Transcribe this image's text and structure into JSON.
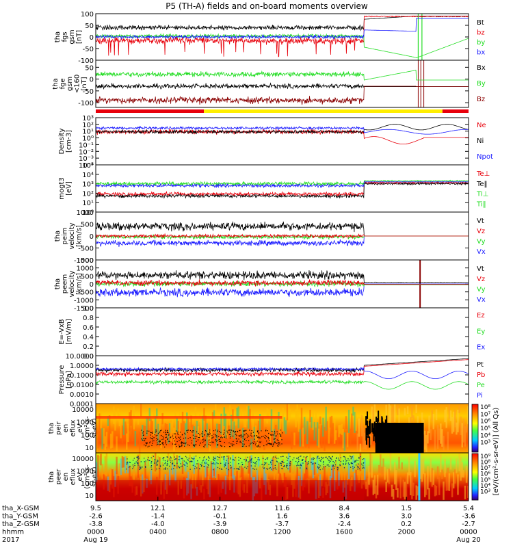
{
  "title": "P5 (TH-A) fields and on-board moments overview",
  "colors": {
    "black": "#000000",
    "red": "#e8000b",
    "darkred": "#8b0000",
    "green": "#22dd22",
    "blue": "#1a1aff",
    "yellow": "#ffee00"
  },
  "chart_data": {
    "type": "line",
    "x_axis": {
      "rows": [
        {
          "label": "tha_X-GSM",
          "values": [
            "9.5",
            "12.1",
            "12.7",
            "11.6",
            "8.4",
            "1.5",
            "5.4"
          ]
        },
        {
          "label": "tha_Y-GSM",
          "values": [
            "-2.6",
            "-1.4",
            "-0.1",
            "1.6",
            "3.6",
            "3.0",
            "-3.6"
          ]
        },
        {
          "label": "tha_Z-GSM",
          "values": [
            "-3.8",
            "-4.0",
            "-3.9",
            "-3.7",
            "-2.4",
            "0.2",
            "-2.7"
          ]
        },
        {
          "label": "hhmm",
          "values": [
            "0000",
            "0400",
            "0800",
            "1200",
            "1600",
            "2000",
            "0000"
          ]
        },
        {
          "label": "2017",
          "values": [
            "Aug 19",
            "",
            "",
            "",
            "",
            "",
            "Aug 20"
          ]
        }
      ]
    },
    "panels": [
      {
        "id": "fgs",
        "ylabel_lines": [
          "tha",
          "fgs",
          "gsm",
          "[nT]"
        ],
        "ylim": [
          -100,
          100
        ],
        "ticks": [
          "100",
          "50",
          "0",
          "-50",
          "-100"
        ],
        "series": [
          {
            "name": "Bt",
            "color": "black"
          },
          {
            "name": "bz",
            "color": "red"
          },
          {
            "name": "by",
            "color": "green"
          },
          {
            "name": "bx",
            "color": "blue"
          }
        ]
      },
      {
        "id": "fge",
        "ylabel_lines": [
          "tha",
          "fge",
          "gsm",
          "<160",
          "[nT]"
        ],
        "ylim": [
          -120,
          80
        ],
        "ticks": [
          "50",
          "0",
          "-50",
          "-100"
        ],
        "series": [
          {
            "name": "Bx",
            "color": "black"
          },
          {
            "name": "By",
            "color": "green"
          },
          {
            "name": "Bz",
            "color": "darkred"
          }
        ]
      },
      {
        "id": "density",
        "ylabel_lines": [
          "Density",
          "[cm-3]"
        ],
        "ylim": [
          0.0001,
          1000
        ],
        "log": true,
        "ticks": [
          "10³",
          "10²",
          "10¹",
          "10⁰",
          "10⁻¹",
          "10⁻²",
          "10⁻³",
          "10⁻⁴"
        ],
        "series": [
          {
            "name": "Ne",
            "color": "red"
          },
          {
            "name": "Ni",
            "color": "black"
          },
          {
            "name": "Npot",
            "color": "blue"
          }
        ]
      },
      {
        "id": "temperature",
        "ylabel_lines": [
          "mogt3",
          "[eV]"
        ],
        "ylim": [
          1,
          100000
        ],
        "log": true,
        "ticks": [
          "10⁵",
          "10⁴",
          "10³",
          "10²",
          "10¹",
          "10⁰"
        ],
        "series": [
          {
            "name": "Te⊥",
            "color": "red"
          },
          {
            "name": "Te‖",
            "color": "black"
          },
          {
            "name": "Ti⊥",
            "color": "green"
          },
          {
            "name": "Ti‖",
            "color": "green"
          }
        ]
      },
      {
        "id": "peim",
        "ylabel_lines": [
          "tha",
          "peim",
          "velocity",
          "[km/s]"
        ],
        "ylim": [
          -1000,
          1000
        ],
        "ticks": [
          "1000",
          "500",
          "0",
          "-500",
          "-1000"
        ],
        "series": [
          {
            "name": "Vt",
            "color": "black"
          },
          {
            "name": "Vz",
            "color": "red"
          },
          {
            "name": "Vy",
            "color": "green"
          },
          {
            "name": "Vx",
            "color": "blue"
          }
        ]
      },
      {
        "id": "peem",
        "ylabel_lines": [
          "tha",
          "peem",
          "velocity",
          "[km/s]"
        ],
        "ylim": [
          -1500,
          1500
        ],
        "ticks": [
          "1500",
          "1000",
          "500",
          "0",
          "-500",
          "-1000",
          "-1500"
        ],
        "series": [
          {
            "name": "Vt",
            "color": "black"
          },
          {
            "name": "Vz",
            "color": "red"
          },
          {
            "name": "Vy",
            "color": "green"
          },
          {
            "name": "Vx",
            "color": "blue"
          }
        ]
      },
      {
        "id": "efield",
        "ylabel_lines": [
          "E=-VxB",
          "[mV/m]"
        ],
        "ylim": [
          0,
          1
        ],
        "ticks": [
          "1.0",
          "0.8",
          "0.6",
          "0.4",
          "0.2",
          "0.0"
        ],
        "series": [
          {
            "name": "Ez",
            "color": "red"
          },
          {
            "name": "Ey",
            "color": "green"
          },
          {
            "name": "Ex",
            "color": "blue"
          }
        ]
      },
      {
        "id": "pressure",
        "ylabel_lines": [
          "Pressure",
          "[nPa]"
        ],
        "ylim": [
          0.0001,
          10
        ],
        "log": true,
        "ticks": [
          "10.0000",
          "1.0000",
          "0.1000",
          "0.0100",
          "0.0010",
          "0.0001"
        ],
        "series": [
          {
            "name": "Pt",
            "color": "black"
          },
          {
            "name": "Pb",
            "color": "red"
          },
          {
            "name": "Pe",
            "color": "green"
          },
          {
            "name": "Pi",
            "color": "blue"
          }
        ]
      },
      {
        "id": "peir",
        "ylabel_lines": [
          "tha",
          "peir",
          "en",
          "eflux",
          "eV",
          "(cm²-s-",
          "sr-eV)"
        ],
        "ylim": [
          5,
          30000
        ],
        "log": true,
        "ticks": [
          "10000",
          "1000",
          "100",
          "10"
        ],
        "colorbar_ticks": [
          "10⁸",
          "10⁷",
          "10⁶",
          "10⁵",
          "10⁴",
          "10³"
        ],
        "series": []
      },
      {
        "id": "peer",
        "ylabel_lines": [
          "tha",
          "peer",
          "en",
          "eflux",
          "eV",
          "(cm²-s-",
          "sr-eV)"
        ],
        "ylim": [
          5,
          30000
        ],
        "log": true,
        "ticks": [
          "10000",
          "1000",
          "100",
          "10"
        ],
        "colorbar_ticks": [
          "10⁹",
          "10⁸",
          "10⁷",
          "10⁶",
          "10⁵",
          "10⁴",
          "10³"
        ],
        "series": []
      }
    ],
    "colorbar_label": "[eV/(cm²-s-sr-eV)] (All Qs)"
  }
}
